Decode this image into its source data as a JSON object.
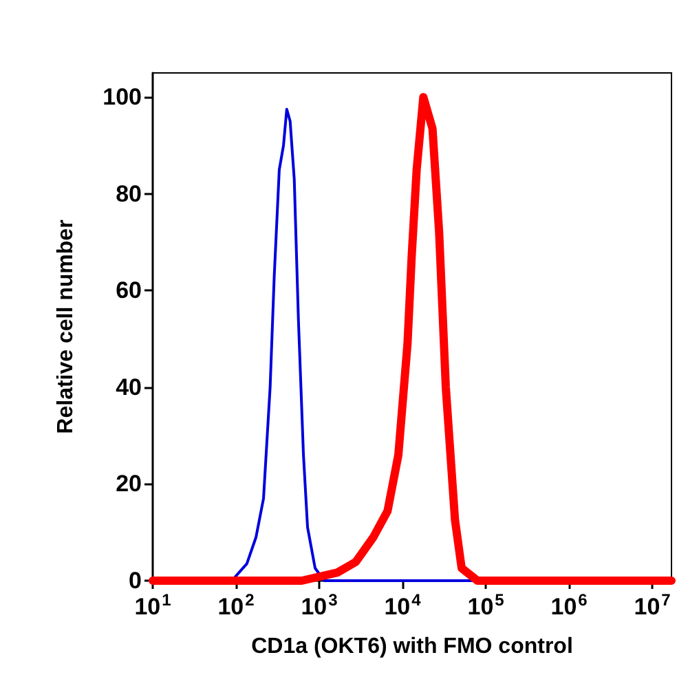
{
  "chart_data": {
    "type": "line",
    "xlabel": "CD1a (OKT6) with FMO control",
    "ylabel": "Relative cell number",
    "log": "x",
    "grid": false,
    "marker": "none",
    "line_style": "solid",
    "xlim": [
      10,
      17000000
    ],
    "ylim": [
      0,
      105
    ],
    "xticks": [
      {
        "value": 10,
        "label": "10$^{1}$"
      },
      {
        "value": 100,
        "label": "10$^{2}$"
      },
      {
        "value": 1000,
        "label": "10$^{3}$"
      },
      {
        "value": 10000,
        "label": "10$^{4}$"
      },
      {
        "value": 100000,
        "label": "10$^{5}$"
      },
      {
        "value": 1000000,
        "label": "10$^{6}$"
      },
      {
        "value": 10000000,
        "label": "10$^{7}$"
      }
    ],
    "yticks": [
      0,
      20,
      40,
      60,
      80,
      100
    ],
    "series": [
      {
        "color": "#0000dd",
        "x": [
          10,
          89,
          135,
          174,
          214,
          257,
          288,
          331,
          372,
          407,
          447,
          501,
          562,
          646,
          724,
          891,
          1148,
          17000000
        ],
        "values": [
          0,
          0,
          3.5,
          9,
          17,
          40,
          63,
          85,
          90,
          97.5,
          95,
          83,
          54,
          26,
          11,
          2.6,
          0,
          0
        ]
      },
      {
        "color": "#ff0000",
        "x": [
          10,
          617,
          1660,
          2754,
          4467,
          6607,
          8913,
          11482,
          12882,
          14791,
          17783,
          22909,
          27542,
          33113,
          42658,
          51286,
          79433,
          17000000
        ],
        "values": [
          0,
          0,
          1.7,
          3.9,
          9,
          14.4,
          26,
          49,
          67,
          85,
          100,
          93.5,
          72,
          40,
          12.6,
          2.6,
          0,
          0
        ]
      }
    ]
  }
}
